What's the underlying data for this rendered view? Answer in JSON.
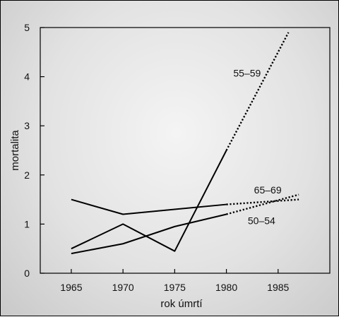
{
  "chart_data": {
    "type": "line",
    "title": "",
    "xlabel": "rok úmrtí",
    "ylabel": "mortalita",
    "xlim": [
      1962,
      1990
    ],
    "ylim": [
      0,
      5
    ],
    "xticks": [
      1965,
      1970,
      1975,
      1980,
      1985
    ],
    "yticks": [
      0,
      1,
      2,
      3,
      4,
      5
    ],
    "grid": false,
    "legend": "inline labels",
    "series": [
      {
        "name": "55–59",
        "x": [
          1965,
          1970,
          1975,
          1980
        ],
        "y": [
          0.5,
          1.0,
          0.45,
          2.5
        ],
        "projection": {
          "x": [
            1980,
            1986
          ],
          "y": [
            2.5,
            4.9
          ]
        }
      },
      {
        "name": "65–69",
        "x": [
          1965,
          1970,
          1975,
          1980
        ],
        "y": [
          1.5,
          1.2,
          1.3,
          1.4
        ],
        "projection": {
          "x": [
            1980,
            1987
          ],
          "y": [
            1.4,
            1.5
          ]
        }
      },
      {
        "name": "50–54",
        "x": [
          1965,
          1970,
          1975,
          1980
        ],
        "y": [
          0.4,
          0.6,
          0.95,
          1.2
        ],
        "projection": {
          "x": [
            1980,
            1987
          ],
          "y": [
            1.2,
            1.6
          ]
        }
      }
    ]
  }
}
